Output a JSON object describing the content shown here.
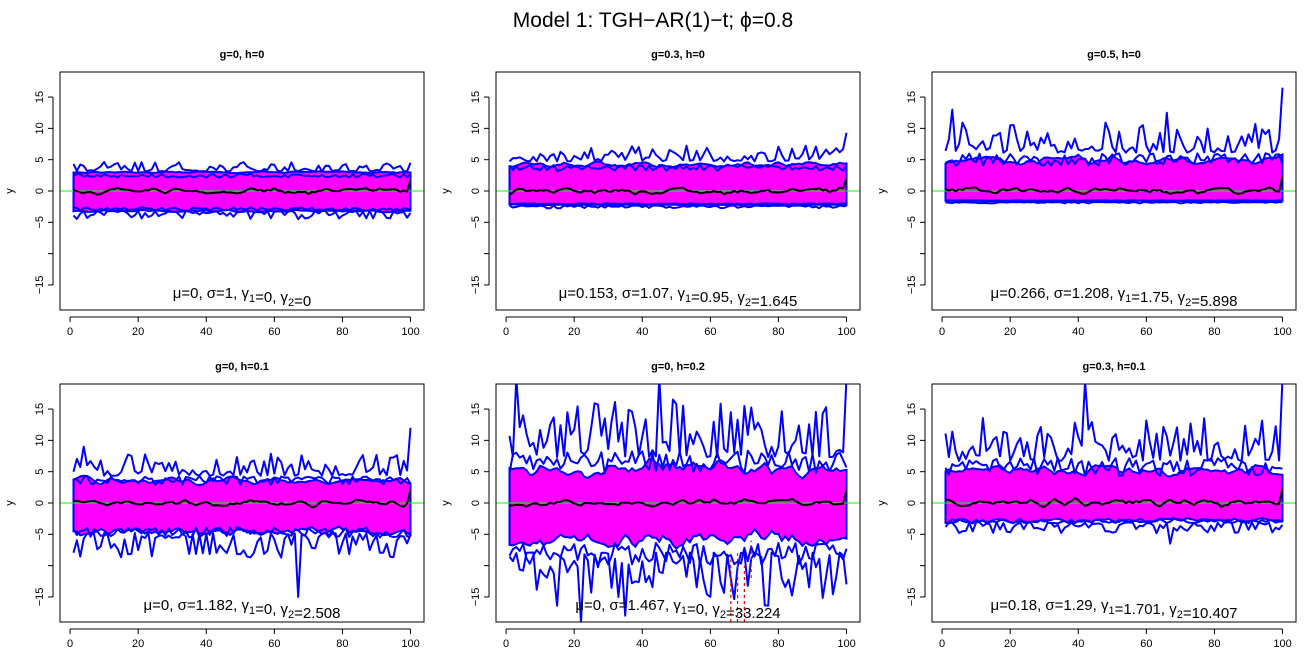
{
  "title": "Model 1: TGH−AR(1)−t; ϕ=0.8",
  "colors": {
    "band": "#ff00ff",
    "quantile_lines": "#0000ff",
    "median_line": "#000000",
    "zero_line": "#00ff00",
    "outlier_lines": "#ff0000"
  },
  "chart_data": [
    {
      "type": "line",
      "title": "g=0, h=0",
      "ylabel": "y",
      "xlim": [
        1,
        100
      ],
      "ylim": [
        -19,
        19
      ],
      "xticks": [
        0,
        20,
        40,
        60,
        80,
        100
      ],
      "yticks": [
        -15,
        -10,
        -5,
        0,
        5,
        10,
        15
      ],
      "ytick_labels": [
        "−15",
        "",
        "−5",
        "0",
        "5",
        "10",
        "15"
      ],
      "stats": {
        "mu": "0",
        "sigma": "1",
        "gamma1": "0",
        "gamma2": "0"
      },
      "band": {
        "lower": -3.2,
        "upper": 3.0,
        "lower_noise": 0.25,
        "upper_noise": 0.2
      },
      "whiskers": {
        "upper_base": 3.4,
        "upper_noise": 0.7,
        "lower_base": -3.4,
        "lower_noise": 0.6,
        "end_up": 4.5,
        "end_low": -3.5
      },
      "median_amp": 0.7,
      "spikes": [
        {
          "x": 67,
          "y": -4.5
        }
      ],
      "red_dashes": []
    },
    {
      "type": "line",
      "title": "g=0.3, h=0",
      "ylabel": "y",
      "xlim": [
        1,
        100
      ],
      "ylim": [
        -19,
        19
      ],
      "xticks": [
        0,
        20,
        40,
        60,
        80,
        100
      ],
      "yticks": [
        -15,
        -10,
        -5,
        0,
        5,
        10,
        15
      ],
      "ytick_labels": [
        "−15",
        "",
        "−5",
        "0",
        "5",
        "10",
        "15"
      ],
      "stats": {
        "mu": "0.153",
        "sigma": "1.07",
        "gamma1": "0.95",
        "gamma2": "1.645"
      },
      "band": {
        "lower": -2.2,
        "upper": 4.2,
        "lower_noise": 0.1,
        "upper_noise": 0.6
      },
      "whiskers": {
        "upper_base": 5.2,
        "upper_noise": 1.2,
        "lower_base": -2.4,
        "lower_noise": 0.2,
        "end_up": 9.3,
        "end_low": -2.4
      },
      "median_amp": 0.8,
      "spikes": [],
      "red_dashes": []
    },
    {
      "type": "line",
      "title": "g=0.5, h=0",
      "ylabel": "y",
      "xlim": [
        1,
        100
      ],
      "ylim": [
        -19,
        19
      ],
      "xticks": [
        0,
        20,
        40,
        60,
        80,
        100
      ],
      "yticks": [
        -15,
        -10,
        -5,
        0,
        5,
        10,
        15
      ],
      "ytick_labels": [
        "−15",
        "",
        "−5",
        "0",
        "5",
        "10",
        "15"
      ],
      "stats": {
        "mu": "0.266",
        "sigma": "1.208",
        "gamma1": "1.75",
        "gamma2": "5.898"
      },
      "band": {
        "lower": -1.6,
        "upper": 5.0,
        "lower_noise": 0.1,
        "upper_noise": 1.0
      },
      "whiskers": {
        "upper_base": 7.0,
        "upper_noise": 2.2,
        "lower_base": -1.8,
        "lower_noise": 0.1,
        "end_up": 16.5,
        "end_low": -1.8
      },
      "median_amp": 0.9,
      "spikes": [
        {
          "x": 3,
          "y": 13
        },
        {
          "x": 66,
          "y": 12.5
        }
      ],
      "red_dashes": []
    },
    {
      "type": "line",
      "title": "g=0, h=0.1",
      "ylabel": "y",
      "xlim": [
        1,
        100
      ],
      "ylim": [
        -19,
        19
      ],
      "xticks": [
        0,
        20,
        40,
        60,
        80,
        100
      ],
      "yticks": [
        -15,
        -10,
        -5,
        0,
        5,
        10,
        15
      ],
      "ytick_labels": [
        "−15",
        "",
        "−5",
        "0",
        "5",
        "10",
        "15"
      ],
      "stats": {
        "mu": "0",
        "sigma": "1.182",
        "gamma1": "0",
        "gamma2": "2.508"
      },
      "band": {
        "lower": -4.5,
        "upper": 3.6,
        "lower_noise": 1.0,
        "upper_noise": 0.8
      },
      "whiskers": {
        "upper_base": 5.0,
        "upper_noise": 1.6,
        "lower_base": -5.5,
        "lower_noise": 1.8,
        "end_up": 12,
        "end_low": -5
      },
      "median_amp": 0.8,
      "spikes": [
        {
          "x": 67,
          "y": -15
        },
        {
          "x": 4,
          "y": 9
        }
      ],
      "red_dashes": []
    },
    {
      "type": "line",
      "title": "g=0, h=0.2",
      "ylabel": "y",
      "xlim": [
        1,
        100
      ],
      "ylim": [
        -19,
        19
      ],
      "xticks": [
        0,
        20,
        40,
        60,
        80,
        100
      ],
      "yticks": [
        -15,
        -10,
        -5,
        0,
        5,
        10,
        15
      ],
      "ytick_labels": [
        "−15",
        "",
        "−5",
        "0",
        "5",
        "10",
        "15"
      ],
      "stats": {
        "mu": "0",
        "sigma": "1.467",
        "gamma1": "0",
        "gamma2": "33.224"
      },
      "band": {
        "lower": -6.0,
        "upper": 5.5,
        "lower_noise": 2.2,
        "upper_noise": 1.8
      },
      "whiskers": {
        "upper_base": 9.0,
        "upper_noise": 4.2,
        "lower_base": -9.5,
        "lower_noise": 4.0,
        "end_up": 20,
        "end_low": -13
      },
      "median_amp": 0.8,
      "spikes": [
        {
          "x": 3,
          "y": 20
        },
        {
          "x": 22,
          "y": -19
        },
        {
          "x": 45,
          "y": 20
        },
        {
          "x": 35,
          "y": -18
        }
      ],
      "red_dashes": [
        {
          "x": 66,
          "y0": -19,
          "y1": -9
        },
        {
          "x": 68,
          "y0": -19,
          "y1": -8
        },
        {
          "x": 70,
          "y0": -19,
          "y1": -10
        },
        {
          "x": 72,
          "y0": -12,
          "y1": -6
        }
      ]
    },
    {
      "type": "line",
      "title": "g=0.3, h=0.1",
      "ylabel": "y",
      "xlim": [
        1,
        100
      ],
      "ylim": [
        -19,
        19
      ],
      "xticks": [
        0,
        20,
        40,
        60,
        80,
        100
      ],
      "yticks": [
        -15,
        -10,
        -5,
        0,
        5,
        10,
        15
      ],
      "ytick_labels": [
        "−15",
        "",
        "−5",
        "0",
        "5",
        "10",
        "15"
      ],
      "stats": {
        "mu": "0.18",
        "sigma": "1.29",
        "gamma1": "1.701",
        "gamma2": "10.407"
      },
      "band": {
        "lower": -2.8,
        "upper": 5.2,
        "lower_noise": 0.6,
        "upper_noise": 1.2
      },
      "whiskers": {
        "upper_base": 8.0,
        "upper_noise": 3.2,
        "lower_base": -3.4,
        "lower_noise": 0.8,
        "end_up": 20,
        "end_low": -3.5
      },
      "median_amp": 0.9,
      "spikes": [
        {
          "x": 42,
          "y": 19.5
        },
        {
          "x": 67,
          "y": -6.5
        }
      ],
      "red_dashes": []
    }
  ]
}
